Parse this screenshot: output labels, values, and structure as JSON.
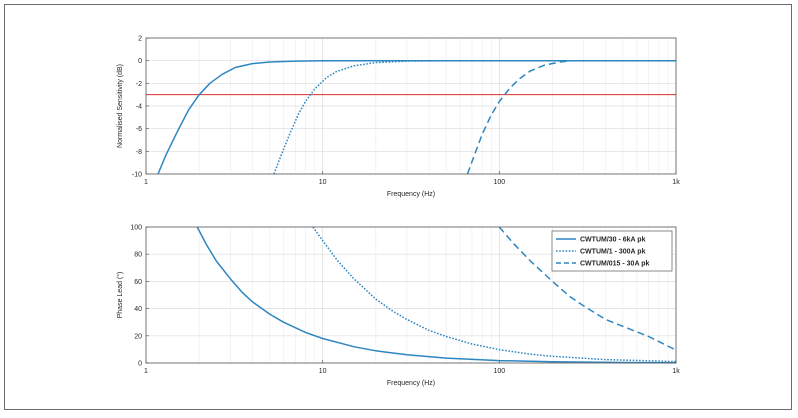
{
  "chart_data": [
    {
      "type": "line",
      "xlabel": "Frequency (Hz)",
      "ylabel": "Normalised Sensitivity (dB)",
      "x_scale": "log",
      "xlim": [
        1,
        1000
      ],
      "ylim": [
        -10,
        2
      ],
      "x_ticks": [
        1,
        10,
        100,
        1000
      ],
      "x_tick_labels": [
        "1",
        "10",
        "100",
        "1k"
      ],
      "y_ticks": [
        -10,
        -8,
        -6,
        -4,
        -2,
        0,
        2
      ],
      "y_tick_labels": [
        "-10",
        "-8",
        "-6",
        "-4",
        "-2",
        "0",
        "2"
      ],
      "grid": true,
      "reference_line": {
        "y": -3,
        "color": "#e02b2b"
      },
      "series": [
        {
          "style": "solid",
          "color": "#2e86c1",
          "points": [
            [
              1.17,
              -10
            ],
            [
              1.3,
              -8.3
            ],
            [
              1.5,
              -6.3
            ],
            [
              1.75,
              -4.3
            ],
            [
              2.0,
              -3.0
            ],
            [
              2.3,
              -2.0
            ],
            [
              2.7,
              -1.2
            ],
            [
              3.2,
              -0.6
            ],
            [
              4.0,
              -0.26
            ],
            [
              5.0,
              -0.12
            ],
            [
              7.0,
              -0.04
            ],
            [
              10,
              0
            ],
            [
              1000,
              0
            ]
          ]
        },
        {
          "style": "dotted",
          "color": "#2e86c1",
          "points": [
            [
              5.3,
              -10
            ],
            [
              5.8,
              -8.4
            ],
            [
              6.5,
              -6.5
            ],
            [
              7.3,
              -4.7
            ],
            [
              8.0,
              -3.6
            ],
            [
              9.0,
              -2.5
            ],
            [
              10.5,
              -1.5
            ],
            [
              12,
              -0.95
            ],
            [
              15,
              -0.45
            ],
            [
              20,
              -0.17
            ],
            [
              30,
              -0.04
            ],
            [
              50,
              0
            ],
            [
              1000,
              0
            ]
          ]
        },
        {
          "style": "dashed",
          "color": "#2e86c1",
          "points": [
            [
              66,
              -10
            ],
            [
              72,
              -8.4
            ],
            [
              80,
              -6.5
            ],
            [
              90,
              -4.8
            ],
            [
              100,
              -3.6
            ],
            [
              115,
              -2.4
            ],
            [
              130,
              -1.6
            ],
            [
              150,
              -0.9
            ],
            [
              180,
              -0.4
            ],
            [
              220,
              -0.12
            ],
            [
              260,
              0
            ],
            [
              1000,
              0
            ]
          ]
        }
      ]
    },
    {
      "type": "line",
      "xlabel": "Frequency (Hz)",
      "ylabel": "Phase Lead (°)",
      "x_scale": "log",
      "xlim": [
        1,
        1000
      ],
      "ylim": [
        0,
        100
      ],
      "x_ticks": [
        1,
        10,
        100,
        1000
      ],
      "x_tick_labels": [
        "1",
        "10",
        "100",
        "1k"
      ],
      "y_ticks": [
        0,
        20,
        40,
        60,
        80,
        100
      ],
      "y_tick_labels": [
        "0",
        "20",
        "40",
        "60",
        "80",
        "100"
      ],
      "grid": true,
      "legend_placement": "top-right",
      "series": [
        {
          "name": "CWTUM/30 - 6kA pk",
          "style": "solid",
          "color": "#2e86c1",
          "points": [
            [
              1.95,
              100
            ],
            [
              2.2,
              87
            ],
            [
              2.5,
              75
            ],
            [
              3,
              62
            ],
            [
              3.5,
              52
            ],
            [
              4,
              45
            ],
            [
              5,
              36
            ],
            [
              6,
              30
            ],
            [
              8,
              22.5
            ],
            [
              10,
              18
            ],
            [
              15,
              12
            ],
            [
              20,
              9
            ],
            [
              30,
              6
            ],
            [
              50,
              3.6
            ],
            [
              100,
              1.8
            ],
            [
              200,
              0.9
            ],
            [
              500,
              0.36
            ],
            [
              1000,
              0.18
            ]
          ]
        },
        {
          "name": "CWTUM/1 - 300A pk",
          "style": "dotted",
          "color": "#2e86c1",
          "points": [
            [
              8.8,
              100
            ],
            [
              10,
              90
            ],
            [
              12,
              76
            ],
            [
              15,
              62
            ],
            [
              20,
              47
            ],
            [
              25,
              38
            ],
            [
              30,
              32
            ],
            [
              40,
              24
            ],
            [
              50,
              19.5
            ],
            [
              70,
              14
            ],
            [
              100,
              9.8
            ],
            [
              150,
              6.5
            ],
            [
              200,
              4.9
            ],
            [
              400,
              2.5
            ],
            [
              1000,
              1.0
            ]
          ]
        },
        {
          "name": "CWTUM/015 - 30A pk",
          "style": "dashed",
          "color": "#2e86c1",
          "points": [
            [
              100,
              100
            ],
            [
              120,
              88
            ],
            [
              150,
              75
            ],
            [
              200,
              60
            ],
            [
              250,
              49
            ],
            [
              300,
              42
            ],
            [
              400,
              32
            ],
            [
              500,
              27
            ],
            [
              700,
              19.5
            ],
            [
              1000,
              9.5
            ]
          ]
        }
      ]
    }
  ]
}
